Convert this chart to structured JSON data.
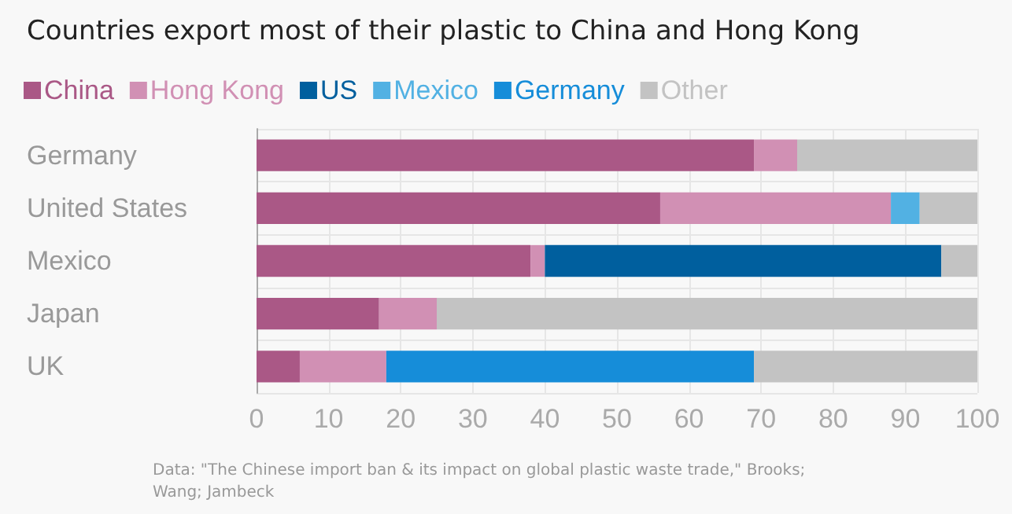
{
  "chart_data": {
    "type": "bar",
    "orientation": "horizontal",
    "stacked": true,
    "title": "Countries export most of their plastic to China and Hong Kong",
    "categories": [
      "Germany",
      "United States",
      "Mexico",
      "Japan",
      "UK"
    ],
    "series": [
      {
        "name": "China",
        "color": "#aa5886",
        "values": [
          69,
          56,
          38,
          17,
          6
        ]
      },
      {
        "name": "Hong Kong",
        "color": "#d190b4",
        "values": [
          6,
          32,
          2,
          8,
          12
        ]
      },
      {
        "name": "US",
        "color": "#005f9e",
        "values": [
          null,
          null,
          55,
          null,
          null
        ]
      },
      {
        "name": "Mexico",
        "color": "#52b1e3",
        "values": [
          null,
          4,
          null,
          null,
          null
        ]
      },
      {
        "name": "Germany",
        "color": "#168dd9",
        "values": [
          null,
          null,
          null,
          null,
          51
        ]
      },
      {
        "name": "Other",
        "color": "#c3c3c3",
        "values": [
          25,
          8,
          5,
          75,
          31
        ]
      }
    ],
    "xlim": [
      0,
      100
    ],
    "xticks": [
      0,
      10,
      20,
      30,
      40,
      50,
      60,
      70,
      80,
      90,
      100
    ],
    "grid": true,
    "legend": "top left",
    "annotations": [
      "Data: \"The Chinese import ban & its impact on global plastic waste trade,\" Brooks; Wang; Jambeck"
    ]
  }
}
